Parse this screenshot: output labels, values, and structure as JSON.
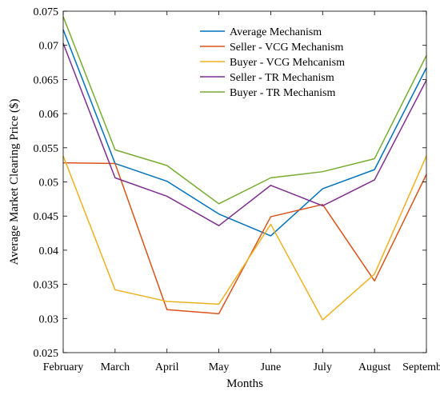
{
  "chart_data": {
    "type": "line",
    "xlabel": "Months",
    "ylabel": "Average Market Clearing Price ($)",
    "categories": [
      "February",
      "March",
      "April",
      "May",
      "June",
      "July",
      "August",
      "September"
    ],
    "ylim": [
      0.025,
      0.075
    ],
    "yticks": [
      0.025,
      0.03,
      0.035,
      0.04,
      0.045,
      0.05,
      0.055,
      0.06,
      0.065,
      0.07,
      0.075
    ],
    "ytick_labels": [
      "0.025",
      "0.03",
      "0.035",
      "0.04",
      "0.045",
      "0.05",
      "0.055",
      "0.06",
      "0.065",
      "0.07",
      "0.075"
    ],
    "legend_position": "top-right",
    "series": [
      {
        "name": "Average Mechanism",
        "color": "#0072BD",
        "values": [
          0.0723,
          0.0527,
          0.0501,
          0.0453,
          0.0421,
          0.049,
          0.0518,
          0.0667
        ]
      },
      {
        "name": "Seller - VCG Mechanism",
        "color": "#D95319",
        "values": [
          0.0528,
          0.0527,
          0.0313,
          0.0307,
          0.0449,
          0.0467,
          0.0355,
          0.0511
        ]
      },
      {
        "name": "Buyer - VCG Mehcanism",
        "color": "#EDB120",
        "values": [
          0.0538,
          0.0342,
          0.0325,
          0.0321,
          0.0438,
          0.0298,
          0.0365,
          0.0538
        ]
      },
      {
        "name": "Seller - TR Mechanism",
        "color": "#7E2F8E",
        "values": [
          0.0703,
          0.0506,
          0.0479,
          0.0436,
          0.0495,
          0.0465,
          0.0503,
          0.0649
        ]
      },
      {
        "name": "Buyer - TR Mechanism",
        "color": "#77AC30",
        "values": [
          0.0742,
          0.0547,
          0.0524,
          0.0468,
          0.0506,
          0.0515,
          0.0534,
          0.0685
        ]
      }
    ]
  }
}
